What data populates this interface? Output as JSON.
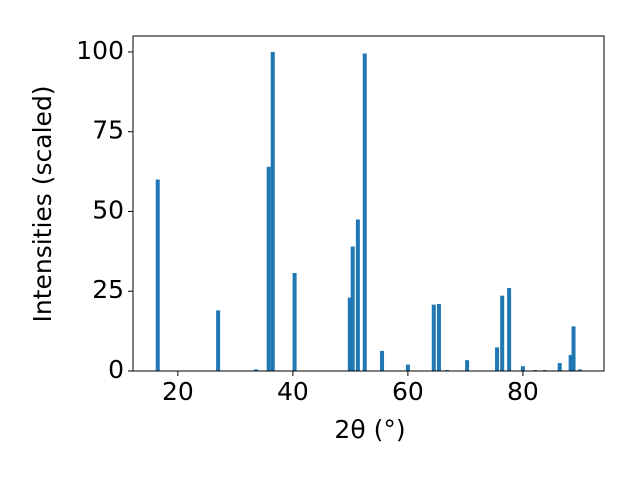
{
  "chart_data": {
    "type": "bar",
    "xlabel": "2θ (°)",
    "ylabel": "Intensities (scaled)",
    "x": [
      16.5,
      27.0,
      33.6,
      35.8,
      36.5,
      40.3,
      49.9,
      50.4,
      51.3,
      52.5,
      55.5,
      60.0,
      64.5,
      65.4,
      66.8,
      70.3,
      75.5,
      76.4,
      77.6,
      80.0,
      82.1,
      83.8,
      86.4,
      88.3,
      88.8,
      89.9
    ],
    "values": [
      60,
      19,
      0.5,
      64,
      100,
      30.7,
      23,
      39,
      47.5,
      99.5,
      6.3,
      2,
      20.8,
      21,
      0.3,
      3.4,
      7.4,
      23.6,
      26,
      1.5,
      0.3,
      0.3,
      2.5,
      5,
      14,
      0.5
    ],
    "color": "#1f77b4",
    "xlim": [
      12.2,
      94.1
    ],
    "xticks": [
      20,
      40,
      60,
      80
    ],
    "ylim": [
      0,
      105
    ],
    "yticks": [
      0,
      25,
      50,
      75,
      100
    ]
  }
}
